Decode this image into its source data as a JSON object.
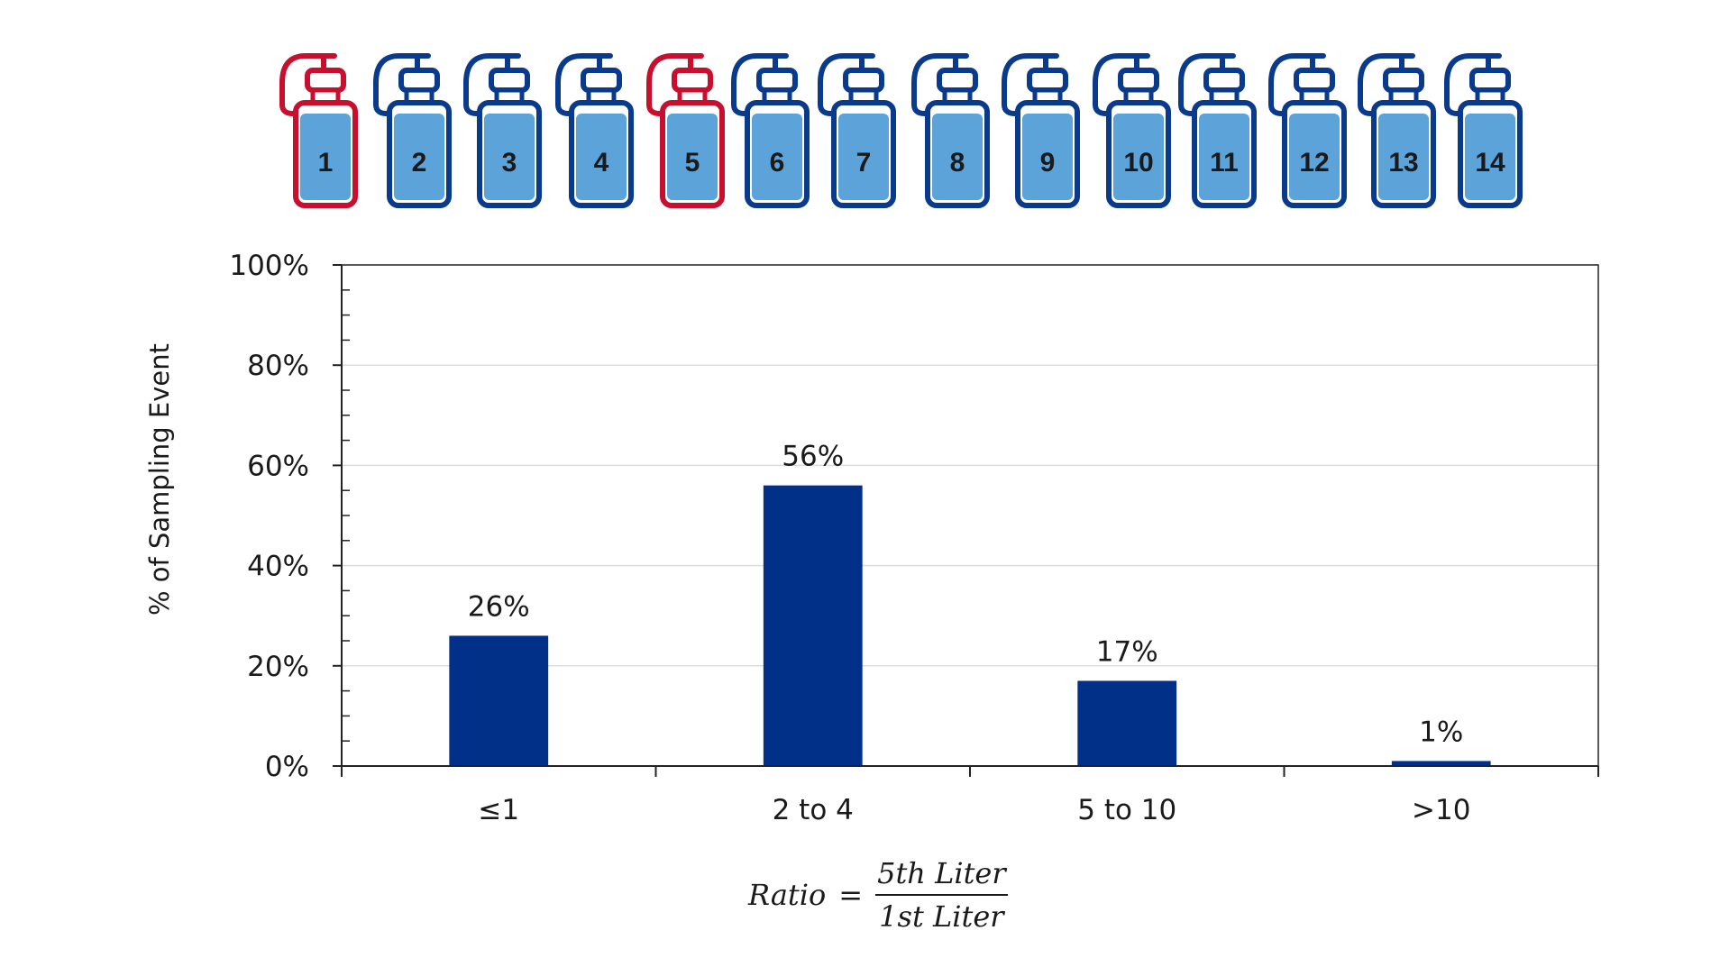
{
  "bottles": {
    "labels": [
      "1",
      "2",
      "3",
      "4",
      "5",
      "6",
      "7",
      "8",
      "9",
      "10",
      "11",
      "12",
      "13",
      "14"
    ],
    "highlighted": [
      "1",
      "5"
    ],
    "highlight_color": "#c8102e",
    "normal_color": "#0a3a8c",
    "fill_color": "#5ba3d9"
  },
  "formula": {
    "lhs": "Ratio",
    "equals": "=",
    "numerator": "5th Liter",
    "denominator": "1st Liter"
  },
  "chart_data": {
    "type": "bar",
    "categories": [
      "≤1",
      "2 to 4",
      "5 to 10",
      ">10"
    ],
    "values": [
      26,
      56,
      17,
      1
    ],
    "data_labels": [
      "26%",
      "56%",
      "17%",
      "1%"
    ],
    "ylabel": "% of Sampling Event",
    "xlabel": "",
    "ylim": [
      0,
      100
    ],
    "yticks": [
      0,
      20,
      40,
      60,
      80,
      100
    ],
    "ytick_labels": [
      "0%",
      "20%",
      "40%",
      "60%",
      "80%",
      "100%"
    ],
    "grid": true,
    "bar_color": "#003087"
  }
}
